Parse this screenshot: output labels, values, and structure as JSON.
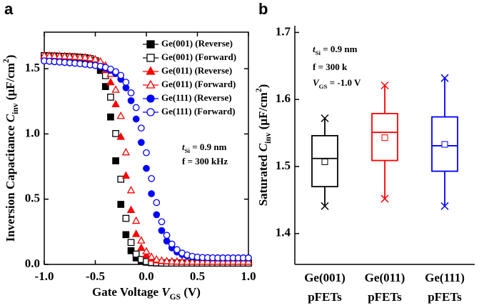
{
  "chart_data": [
    {
      "type": "scatter",
      "panel_label": "a",
      "xlabel": [
        {
          "text": "Gate Voltage "
        },
        {
          "text": "V",
          "style": "italic"
        },
        {
          "text": "GS",
          "style": "sub"
        },
        {
          "text": " (V)"
        }
      ],
      "ylabel": [
        {
          "text": "Inversion Capacitance "
        },
        {
          "text": "C",
          "style": "italic"
        },
        {
          "text": "inv",
          "style": "sub"
        },
        {
          "text": " (μF/cm"
        },
        {
          "text": "2",
          "style": "sup"
        },
        {
          "text": ")"
        }
      ],
      "xlim": [
        -1,
        1
      ],
      "ylim": [
        0,
        1.78
      ],
      "xticks": [
        {
          "value": -1,
          "label": "-1.0"
        },
        -0.5,
        {
          "value": 0,
          "label": "0.0"
        },
        0.5,
        {
          "value": 1,
          "label": "1.0"
        }
      ],
      "yticks": [
        {
          "value": 0,
          "label": "0.0"
        },
        0.5,
        {
          "value": 1,
          "label": "1.0"
        },
        1.5
      ],
      "legend": "upper right",
      "annotations": [
        [
          {
            "text": "t",
            "style": "italic"
          },
          {
            "text": "Si",
            "style": "sub"
          },
          {
            "text": " = 0.9 nm"
          }
        ],
        [
          {
            "text": "f = 300 kHz"
          }
        ]
      ],
      "x": [
        -1,
        -0.95,
        -0.9,
        -0.85,
        -0.8,
        -0.75,
        -0.7,
        -0.65,
        -0.6,
        -0.55,
        -0.5,
        -0.45,
        -0.4,
        -0.35,
        -0.3,
        -0.25,
        -0.2,
        -0.15,
        -0.1,
        -0.05,
        0,
        0.05,
        0.1,
        0.15,
        0.2,
        0.25,
        0.3,
        0.35,
        0.4,
        0.45,
        0.5,
        0.55,
        0.6,
        0.65,
        0.7,
        0.75,
        0.8,
        0.85,
        0.9,
        0.95,
        1
      ],
      "series": [
        {
          "name": "Ge(001) (Reverse)",
          "color": "#000000",
          "marker": "square",
          "filled": true,
          "values": [
            1.6,
            1.598,
            1.597,
            1.595,
            1.594,
            1.592,
            1.59,
            1.587,
            1.581,
            1.57,
            1.545,
            1.487,
            1.363,
            1.13,
            0.794,
            0.46,
            0.228,
            0.105,
            0.05,
            0.026,
            0.017,
            0.013,
            0.011,
            0.01,
            0.01,
            0.01,
            0.01,
            0.01,
            0.01,
            0.01,
            0.01,
            0.01,
            0.01,
            0.01,
            0.01,
            0.01,
            0.01,
            0.01,
            0.01,
            0.01,
            0.01
          ]
        },
        {
          "name": "Ge(001) (Forward)",
          "color": "#000000",
          "marker": "square",
          "filled": false,
          "values": [
            1.6,
            1.598,
            1.597,
            1.595,
            1.594,
            1.592,
            1.59,
            1.587,
            1.584,
            1.577,
            1.561,
            1.525,
            1.447,
            1.282,
            1.003,
            0.653,
            0.353,
            0.168,
            0.079,
            0.038,
            0.022,
            0.015,
            0.012,
            0.011,
            0.01,
            0.01,
            0.01,
            0.01,
            0.01,
            0.01,
            0.01,
            0.01,
            0.01,
            0.01,
            0.01,
            0.01,
            0.01,
            0.01,
            0.01,
            0.01,
            0.01
          ]
        },
        {
          "name": "Ge(011) (Reverse)",
          "color": "#ff0000",
          "marker": "triangle",
          "filled": true,
          "values": [
            1.6,
            1.598,
            1.597,
            1.595,
            1.594,
            1.592,
            1.59,
            1.587,
            1.584,
            1.577,
            1.564,
            1.539,
            1.49,
            1.395,
            1.227,
            0.977,
            0.679,
            0.416,
            0.232,
            0.126,
            0.071,
            0.044,
            0.031,
            0.025,
            0.022,
            0.021,
            0.02,
            0.02,
            0.02,
            0.02,
            0.02,
            0.02,
            0.02,
            0.02,
            0.02,
            0.02,
            0.02,
            0.02,
            0.02,
            0.02,
            0.02
          ]
        },
        {
          "name": "Ge(011) (Forward)",
          "color": "#ff0000",
          "marker": "triangle",
          "filled": false,
          "values": [
            1.6,
            1.598,
            1.597,
            1.595,
            1.594,
            1.592,
            1.59,
            1.587,
            1.585,
            1.58,
            1.571,
            1.555,
            1.523,
            1.459,
            1.338,
            1.137,
            0.858,
            0.567,
            0.333,
            0.182,
            0.099,
            0.057,
            0.037,
            0.028,
            0.024,
            0.022,
            0.021,
            0.02,
            0.02,
            0.02,
            0.02,
            0.02,
            0.02,
            0.02,
            0.02,
            0.02,
            0.02,
            0.02,
            0.02,
            0.02,
            0.02
          ]
        },
        {
          "name": "Ge(111) (Reverse)",
          "color": "#0000ff",
          "marker": "circle",
          "filled": true,
          "values": [
            1.56,
            1.557,
            1.554,
            1.551,
            1.548,
            1.545,
            1.542,
            1.538,
            1.534,
            1.529,
            1.524,
            1.516,
            1.505,
            1.488,
            1.462,
            1.419,
            1.354,
            1.255,
            1.114,
            0.935,
            0.736,
            0.542,
            0.381,
            0.259,
            0.179,
            0.127,
            0.095,
            0.076,
            0.065,
            0.058,
            0.054,
            0.052,
            0.051,
            0.05,
            0.05,
            0.05,
            0.05,
            0.05,
            0.05,
            0.05,
            0.05
          ]
        },
        {
          "name": "Ge(111) (Forward)",
          "color": "#0000ff",
          "marker": "circle",
          "filled": false,
          "values": [
            1.56,
            1.557,
            1.554,
            1.551,
            1.548,
            1.545,
            1.542,
            1.538,
            1.534,
            1.529,
            1.525,
            1.519,
            1.51,
            1.497,
            1.477,
            1.449,
            1.396,
            1.315,
            1.202,
            1.045,
            0.856,
            0.658,
            0.474,
            0.327,
            0.223,
            0.156,
            0.113,
            0.087,
            0.072,
            0.062,
            0.056,
            0.053,
            0.052,
            0.051,
            0.05,
            0.05,
            0.05,
            0.05,
            0.05,
            0.05,
            0.05
          ]
        }
      ]
    },
    {
      "type": "box",
      "panel_label": "b",
      "ylabel": [
        {
          "text": "Saturated "
        },
        {
          "text": "C",
          "style": "italic"
        },
        {
          "text": "inv",
          "style": "sub"
        },
        {
          "text": " (μF/cm"
        },
        {
          "text": "2",
          "style": "sup"
        },
        {
          "text": ")"
        }
      ],
      "ylim": [
        1.354,
        1.71
      ],
      "yticks": [
        1.4,
        1.5,
        1.6,
        1.7
      ],
      "annotations": [
        [
          {
            "text": "t",
            "style": "italic"
          },
          {
            "text": "Si",
            "style": "sub"
          },
          {
            "text": " = 0.9 nm"
          }
        ],
        [
          {
            "text": "f = 300 k"
          }
        ],
        [
          {
            "text": "V",
            "style": "italic"
          },
          {
            "text": "GS",
            "style": "sub"
          },
          {
            "text": " = -1.0 V"
          }
        ]
      ],
      "categories": [
        [
          "Ge(001)",
          "pFETs"
        ],
        [
          "Ge(011)",
          "pFETs"
        ],
        [
          "Ge(111)",
          "pFETs"
        ]
      ],
      "boxes": [
        {
          "color": "#000000",
          "whisker_low": 1.441,
          "q1": 1.47,
          "median": 1.512,
          "q3": 1.546,
          "whisker_high": 1.572,
          "mean": 1.507
        },
        {
          "color": "#ff0000",
          "whisker_low": 1.452,
          "q1": 1.509,
          "median": 1.551,
          "q3": 1.579,
          "whisker_high": 1.621,
          "mean": 1.543
        },
        {
          "color": "#0000ff",
          "whisker_low": 1.441,
          "q1": 1.493,
          "median": 1.531,
          "q3": 1.574,
          "whisker_high": 1.632,
          "mean": 1.533
        }
      ]
    }
  ]
}
